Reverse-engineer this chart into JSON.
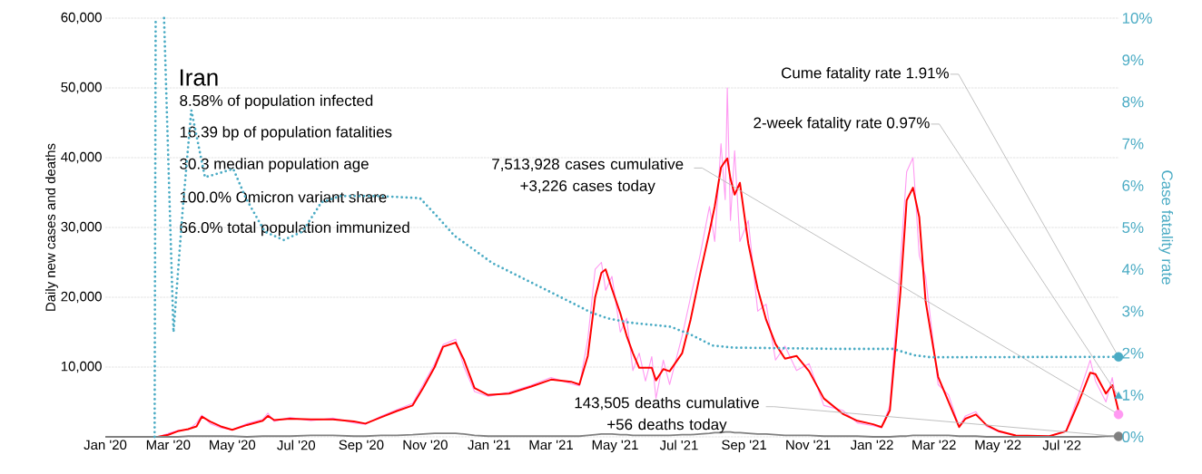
{
  "chart_data": {
    "type": "line",
    "title": "Iran",
    "ylabel": "Daily new cases and deaths",
    "y2label": "Case fatality rate",
    "xlim": [
      "2020-01-01",
      "2022-08-24"
    ],
    "ylim": [
      0,
      60000
    ],
    "y2lim": [
      0,
      10
    ],
    "grid": "y",
    "xticks": [
      {
        "value": "2020-01-01",
        "label": "Jan '20"
      },
      {
        "value": "2020-03-01",
        "label": "Mar '20"
      },
      {
        "value": "2020-05-01",
        "label": "May '20"
      },
      {
        "value": "2020-07-01",
        "label": "Jul '20"
      },
      {
        "value": "2020-09-01",
        "label": "Sep '20"
      },
      {
        "value": "2020-11-01",
        "label": "Nov '20"
      },
      {
        "value": "2021-01-01",
        "label": "Jan '21"
      },
      {
        "value": "2021-03-01",
        "label": "Mar '21"
      },
      {
        "value": "2021-05-01",
        "label": "May '21"
      },
      {
        "value": "2021-07-01",
        "label": "Jul '21"
      },
      {
        "value": "2021-09-01",
        "label": "Sep '21"
      },
      {
        "value": "2021-11-01",
        "label": "Nov '21"
      },
      {
        "value": "2022-01-01",
        "label": "Jan '22"
      },
      {
        "value": "2022-03-01",
        "label": "Mar '22"
      },
      {
        "value": "2022-05-01",
        "label": "May '22"
      },
      {
        "value": "2022-07-01",
        "label": "Jul '22"
      }
    ],
    "yticks": [
      {
        "value": 0,
        "label": null
      },
      {
        "value": 10000,
        "label": "10,000"
      },
      {
        "value": 20000,
        "label": "20,000"
      },
      {
        "value": 30000,
        "label": "30,000"
      },
      {
        "value": 40000,
        "label": "40,000"
      },
      {
        "value": 50000,
        "label": "50,000"
      },
      {
        "value": 60000,
        "label": "60,000"
      }
    ],
    "y2ticks": [
      {
        "value": 0,
        "label": "0%"
      },
      {
        "value": 1,
        "label": "1%"
      },
      {
        "value": 2,
        "label": "2%"
      },
      {
        "value": 3,
        "label": "3%"
      },
      {
        "value": 4,
        "label": "4%"
      },
      {
        "value": 5,
        "label": "5%"
      },
      {
        "value": 6,
        "label": "6%"
      },
      {
        "value": 7,
        "label": "7%"
      },
      {
        "value": 8,
        "label": "8%"
      },
      {
        "value": 9,
        "label": "9%"
      },
      {
        "value": 10,
        "label": "10%"
      }
    ],
    "x": [
      "2020-01-01",
      "2020-02-20",
      "2020-03-01",
      "2020-03-10",
      "2020-03-20",
      "2020-03-28",
      "2020-04-02",
      "2020-04-10",
      "2020-04-20",
      "2020-05-01",
      "2020-05-15",
      "2020-05-30",
      "2020-06-04",
      "2020-06-10",
      "2020-06-25",
      "2020-07-15",
      "2020-08-05",
      "2020-08-25",
      "2020-09-05",
      "2020-09-20",
      "2020-10-05",
      "2020-10-20",
      "2020-10-30",
      "2020-11-10",
      "2020-11-18",
      "2020-11-30",
      "2020-12-08",
      "2020-12-18",
      "2020-12-31",
      "2021-01-20",
      "2021-02-10",
      "2021-03-01",
      "2021-03-20",
      "2021-03-28",
      "2021-04-05",
      "2021-04-12",
      "2021-04-18",
      "2021-04-22",
      "2021-04-28",
      "2021-05-06",
      "2021-05-12",
      "2021-05-18",
      "2021-05-24",
      "2021-05-30",
      "2021-06-05",
      "2021-06-09",
      "2021-06-16",
      "2021-06-22",
      "2021-07-04",
      "2021-07-12",
      "2021-07-21",
      "2021-07-30",
      "2021-08-04",
      "2021-08-10",
      "2021-08-14",
      "2021-08-16",
      "2021-08-19",
      "2021-08-23",
      "2021-08-28",
      "2021-09-05",
      "2021-09-14",
      "2021-09-22",
      "2021-10-01",
      "2021-10-10",
      "2021-10-21",
      "2021-11-02",
      "2021-11-16",
      "2021-12-04",
      "2021-12-18",
      "2022-01-02",
      "2022-01-10",
      "2022-01-18",
      "2022-01-28",
      "2022-02-03",
      "2022-02-09",
      "2022-02-15",
      "2022-02-21",
      "2022-03-05",
      "2022-03-15",
      "2022-03-25",
      "2022-03-31",
      "2022-04-10",
      "2022-04-20",
      "2022-05-02",
      "2022-05-18",
      "2022-06-19",
      "2022-07-05",
      "2022-07-17",
      "2022-07-28",
      "2022-08-02",
      "2022-08-12",
      "2022-08-18",
      "2022-08-24"
    ],
    "series": [
      {
        "color": "#ff99f2",
        "values": [
          0,
          0,
          500,
          900,
          1000,
          2000,
          3100,
          1900,
          1300,
          1000,
          1900,
          2500,
          3400,
          2200,
          2800,
          2300,
          2700,
          2000,
          1800,
          3000,
          3900,
          4800,
          7500,
          10500,
          13200,
          14000,
          10000,
          6500,
          5800,
          6400,
          7400,
          8500,
          7600,
          7300,
          14000,
          24000,
          25000,
          21000,
          23000,
          15000,
          17000,
          9500,
          12000,
          8000,
          11500,
          5500,
          11000,
          7500,
          14500,
          20000,
          26000,
          33000,
          28000,
          42000,
          34000,
          50000,
          31000,
          41000,
          28000,
          31000,
          18000,
          19000,
          11000,
          13000,
          9500,
          10500,
          4500,
          3800,
          2000,
          1600,
          1300,
          4500,
          25000,
          38000,
          40000,
          26000,
          23000,
          7500,
          6000,
          1500,
          3000,
          3600,
          1500,
          700,
          200,
          100,
          900,
          6000,
          11000,
          8000,
          5000,
          8500,
          3226
        ]
      },
      {
        "color": "#ff0000",
        "values": [
          0,
          0,
          300,
          800,
          1100,
          1500,
          2900,
          2200,
          1500,
          1000,
          1700,
          2300,
          3000,
          2400,
          2600,
          2500,
          2500,
          2200,
          1900,
          2800,
          3700,
          4500,
          7000,
          10000,
          12900,
          13500,
          11000,
          7000,
          6000,
          6200,
          7200,
          8200,
          7900,
          7500,
          11600,
          20000,
          23500,
          24000,
          21200,
          17700,
          14500,
          12000,
          9900,
          9900,
          9900,
          8100,
          9700,
          9400,
          12000,
          16800,
          23300,
          29400,
          33000,
          38600,
          39500,
          39900,
          37000,
          34700,
          36400,
          27700,
          21200,
          16800,
          13300,
          11200,
          11600,
          9400,
          5500,
          3300,
          2300,
          1800,
          1400,
          3800,
          20700,
          33900,
          35700,
          31500,
          19500,
          8600,
          5000,
          1400,
          2600,
          3200,
          1700,
          800,
          200,
          100,
          800,
          5000,
          9200,
          9000,
          6200,
          7400,
          3700
        ]
      },
      {
        "color": "#808080",
        "values": [
          0,
          0,
          0,
          0,
          100,
          100,
          100,
          100,
          100,
          100,
          0,
          100,
          100,
          100,
          100,
          200,
          200,
          100,
          100,
          200,
          200,
          300,
          400,
          500,
          500,
          500,
          400,
          200,
          100,
          100,
          100,
          100,
          100,
          100,
          200,
          300,
          400,
          400,
          400,
          300,
          300,
          200,
          200,
          200,
          200,
          200,
          200,
          200,
          300,
          300,
          400,
          500,
          600,
          600,
          700,
          700,
          700,
          600,
          600,
          500,
          400,
          400,
          300,
          200,
          200,
          200,
          100,
          100,
          100,
          0,
          0,
          0,
          100,
          100,
          200,
          200,
          200,
          200,
          200,
          100,
          100,
          100,
          0,
          0,
          0,
          0,
          0,
          0,
          0,
          0,
          100,
          100,
          56
        ]
      },
      {
        "type": "line",
        "axis": "y2",
        "color": "#4aabc4",
        "line_style": "dotted",
        "x": [
          "2020-02-17",
          "2020-02-18",
          "2020-02-22",
          "2020-02-26",
          "2020-03-06",
          "2020-03-15",
          "2020-03-23",
          "2020-04-05",
          "2020-04-19",
          "2020-05-02",
          "2020-05-14",
          "2020-06-01",
          "2020-06-19",
          "2020-07-07",
          "2020-07-25",
          "2020-08-12",
          "2020-09-18",
          "2020-10-27",
          "2020-11-11",
          "2020-11-29",
          "2021-01-04",
          "2021-02-09",
          "2021-03-17",
          "2021-04-08",
          "2021-04-24",
          "2021-05-14",
          "2021-06-23",
          "2021-07-13",
          "2021-08-02",
          "2021-08-22",
          "2021-11-30",
          "2022-01-21",
          "2022-02-10",
          "2022-02-26",
          "2022-08-24"
        ],
        "values": [
          0,
          10,
          null,
          10,
          2.5,
          5.5,
          7.8,
          6.2,
          6.3,
          6.4,
          5.7,
          4.9,
          4.7,
          4.9,
          5.6,
          5.75,
          5.75,
          5.7,
          5.3,
          4.8,
          4.15,
          3.7,
          3.25,
          2.97,
          2.83,
          2.73,
          2.63,
          2.43,
          2.18,
          2.13,
          2.1,
          2.1,
          1.95,
          1.9,
          1.91
        ]
      },
      {
        "type": "scatter",
        "axis": "y2",
        "color": "#4aabc4",
        "marker": "circle",
        "x": [
          "2022-08-24"
        ],
        "values": [
          1.91
        ]
      },
      {
        "type": "scatter",
        "axis": "y2",
        "color": "#4aabc4",
        "marker": "triangle",
        "x": [
          "2022-08-24"
        ],
        "values": [
          0.97
        ]
      },
      {
        "type": "scatter",
        "color": "#ff99f2",
        "marker": "circle",
        "x": [
          "2022-08-24"
        ],
        "values": [
          3226
        ]
      },
      {
        "type": "scatter",
        "color": "#808080",
        "marker": "circle",
        "x": [
          "2022-08-24"
        ],
        "values": [
          56
        ]
      }
    ],
    "annotations": [
      "8.58% of population infected",
      "16.39 bp of population fatalities",
      "30.3 median population age",
      "100.0% Omicron variant share",
      "66.0% total population immunized",
      {
        "text": "Cume fatality rate 1.91%",
        "x": "2022-08-24",
        "y": 11460
      },
      {
        "text": "2-week fatality rate 0.97%",
        "x": "2022-08-24",
        "y": 5820
      },
      {
        "text": "7,513,928 cases cumulative +3,226 cases today",
        "x": "2022-08-24",
        "y": 3226
      },
      {
        "text": "143,505 deaths cumulative +56 deaths today",
        "x": "2022-08-24",
        "y": 56
      }
    ]
  }
}
